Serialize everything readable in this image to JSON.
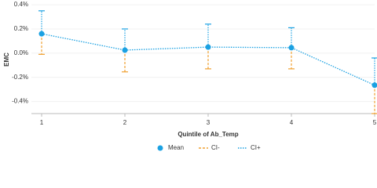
{
  "chart_data": {
    "type": "line-errorbar",
    "x_label": "Quintile of Ab_Temp",
    "y_label": "EMC",
    "categories": [
      "1",
      "2",
      "3",
      "4",
      "5"
    ],
    "series": [
      {
        "name": "Mean",
        "color": "#1ba1e2",
        "values": [
          0.16,
          0.025,
          0.05,
          0.045,
          -0.265
        ]
      },
      {
        "name": "CI-",
        "color": "#f0a030",
        "values": [
          -0.01,
          -0.155,
          -0.13,
          -0.13,
          -0.5
        ]
      },
      {
        "name": "CI+",
        "color": "#1ba1e2",
        "values": [
          0.35,
          0.2,
          0.24,
          0.21,
          -0.04
        ]
      }
    ],
    "ylim": [
      -0.5,
      0.42
    ],
    "yticks": [
      {
        "value": -0.4,
        "label": "-0.4%"
      },
      {
        "value": -0.2,
        "label": "-0.2%"
      },
      {
        "value": 0,
        "label": "0.0%"
      },
      {
        "value": 0.2,
        "label": "0.2%"
      },
      {
        "value": 0.4,
        "label": "0.4%"
      }
    ]
  }
}
